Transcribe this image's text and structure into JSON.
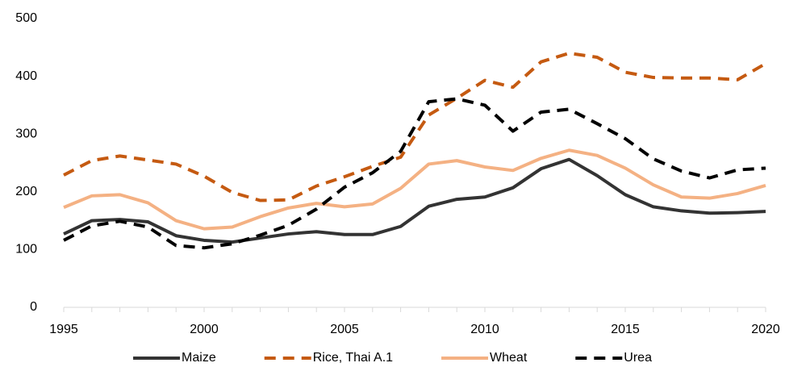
{
  "chart_data": {
    "type": "line",
    "x": [
      1995,
      1996,
      1997,
      1998,
      1999,
      2000,
      2001,
      2002,
      2003,
      2004,
      2005,
      2006,
      2007,
      2008,
      2009,
      2010,
      2011,
      2012,
      2013,
      2014,
      2015,
      2016,
      2017,
      2018,
      2019,
      2020
    ],
    "series": [
      {
        "name": "Maize",
        "color": "#333333",
        "dashed": false,
        "values": [
          127,
          150,
          152,
          148,
          124,
          116,
          113,
          120,
          127,
          131,
          126,
          126,
          140,
          175,
          187,
          191,
          207,
          240,
          256,
          228,
          195,
          174,
          167,
          163,
          164,
          166
        ]
      },
      {
        "name": "Rice, Thai A.1",
        "color": "#c55a11",
        "dashed": true,
        "values": [
          229,
          254,
          262,
          255,
          248,
          227,
          199,
          185,
          186,
          210,
          226,
          244,
          260,
          333,
          362,
          393,
          381,
          425,
          440,
          433,
          407,
          398,
          397,
          397,
          394,
          422
        ]
      },
      {
        "name": "Wheat",
        "color": "#f4b183",
        "dashed": false,
        "values": [
          173,
          193,
          195,
          181,
          150,
          136,
          139,
          157,
          172,
          180,
          174,
          179,
          206,
          248,
          254,
          243,
          237,
          258,
          272,
          263,
          241,
          212,
          191,
          189,
          197,
          211
        ]
      },
      {
        "name": "Urea",
        "color": "#000000",
        "dashed": true,
        "values": [
          116,
          141,
          149,
          139,
          107,
          103,
          110,
          125,
          142,
          170,
          208,
          233,
          270,
          356,
          361,
          350,
          305,
          338,
          343,
          318,
          292,
          257,
          236,
          224,
          238,
          241
        ]
      }
    ],
    "xlim": [
      1995,
      2020
    ],
    "xticks": [
      1995,
      2000,
      2005,
      2010,
      2015,
      2020
    ],
    "ylim": [
      0,
      500
    ],
    "yticks": [
      0,
      100,
      200,
      300,
      400,
      500
    ],
    "grid": false,
    "legend": "bottom"
  }
}
